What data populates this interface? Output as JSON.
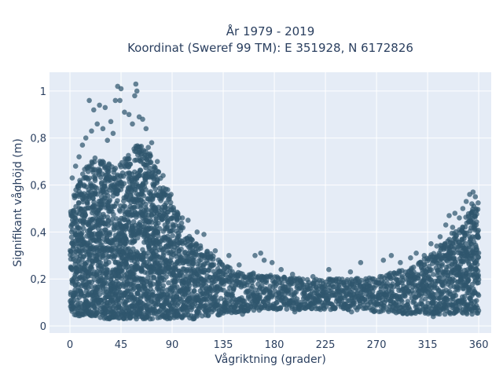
{
  "chart_data": {
    "type": "scatter",
    "title_line1": "År 1979 - 2019",
    "title_line2": "Koordinat (Sweref 99 TM): E 351928, N 6172826",
    "xlabel": "Vågriktning (grader)",
    "ylabel": "Signifikant våghöjd (m)",
    "xlim": [
      -18,
      371
    ],
    "ylim": [
      -0.03,
      1.08
    ],
    "x_ticks": [
      0,
      45,
      90,
      135,
      180,
      225,
      270,
      315,
      360
    ],
    "x_tick_labels": [
      "0",
      "45",
      "90",
      "135",
      "180",
      "225",
      "270",
      "315",
      "360"
    ],
    "y_ticks": [
      0,
      0.2,
      0.4,
      0.6,
      0.8,
      1
    ],
    "y_tick_labels": [
      "0",
      "0,2",
      "0,4",
      "0,6",
      "0,8",
      "1"
    ],
    "marker_color": "#2f566e",
    "grid": true,
    "plot_background": "#e5ecf6",
    "envelope": {
      "x": [
        0,
        10,
        20,
        30,
        40,
        50,
        60,
        70,
        80,
        90,
        100,
        110,
        120,
        135,
        150,
        180,
        210,
        240,
        270,
        300,
        320,
        330,
        340,
        350,
        360
      ],
      "y_upper": [
        0.52,
        0.65,
        0.72,
        0.7,
        0.68,
        0.72,
        0.78,
        0.74,
        0.62,
        0.52,
        0.42,
        0.36,
        0.32,
        0.26,
        0.23,
        0.22,
        0.2,
        0.2,
        0.21,
        0.25,
        0.32,
        0.37,
        0.42,
        0.48,
        0.54
      ],
      "y_lower": [
        0.05,
        0.04,
        0.04,
        0.03,
        0.03,
        0.03,
        0.03,
        0.03,
        0.03,
        0.03,
        0.03,
        0.03,
        0.04,
        0.05,
        0.06,
        0.07,
        0.07,
        0.07,
        0.06,
        0.05,
        0.05,
        0.05,
        0.05,
        0.05,
        0.05
      ]
    },
    "outliers": [
      {
        "x": 58,
        "y": 1.03
      },
      {
        "x": 42,
        "y": 1.02
      },
      {
        "x": 45,
        "y": 1.01
      },
      {
        "x": 59,
        "y": 1.0
      },
      {
        "x": 57,
        "y": 0.98
      },
      {
        "x": 40,
        "y": 0.96
      },
      {
        "x": 44,
        "y": 0.96
      },
      {
        "x": 17,
        "y": 0.96
      },
      {
        "x": 26,
        "y": 0.94
      },
      {
        "x": 31,
        "y": 0.93
      },
      {
        "x": 21,
        "y": 0.92
      },
      {
        "x": 48,
        "y": 0.91
      },
      {
        "x": 52,
        "y": 0.9
      },
      {
        "x": 61,
        "y": 0.89
      },
      {
        "x": 64,
        "y": 0.88
      },
      {
        "x": 36,
        "y": 0.87
      },
      {
        "x": 24,
        "y": 0.86
      },
      {
        "x": 55,
        "y": 0.86
      },
      {
        "x": 29,
        "y": 0.84
      },
      {
        "x": 67,
        "y": 0.84
      },
      {
        "x": 19,
        "y": 0.83
      },
      {
        "x": 38,
        "y": 0.82
      },
      {
        "x": 14,
        "y": 0.8
      },
      {
        "x": 33,
        "y": 0.79
      },
      {
        "x": 72,
        "y": 0.78
      },
      {
        "x": 11,
        "y": 0.77
      },
      {
        "x": 69,
        "y": 0.76
      },
      {
        "x": 8,
        "y": 0.72
      },
      {
        "x": 5,
        "y": 0.68
      },
      {
        "x": 77,
        "y": 0.7
      },
      {
        "x": 2,
        "y": 0.63
      },
      {
        "x": 82,
        "y": 0.64
      },
      {
        "x": 86,
        "y": 0.58
      },
      {
        "x": 89,
        "y": 0.56
      },
      {
        "x": 95,
        "y": 0.48
      },
      {
        "x": 99,
        "y": 0.46
      },
      {
        "x": 104,
        "y": 0.45
      },
      {
        "x": 112,
        "y": 0.4
      },
      {
        "x": 118,
        "y": 0.39
      },
      {
        "x": 128,
        "y": 0.32
      },
      {
        "x": 140,
        "y": 0.3
      },
      {
        "x": 149,
        "y": 0.26
      },
      {
        "x": 163,
        "y": 0.3
      },
      {
        "x": 168,
        "y": 0.31
      },
      {
        "x": 171,
        "y": 0.28
      },
      {
        "x": 178,
        "y": 0.27
      },
      {
        "x": 186,
        "y": 0.24
      },
      {
        "x": 196,
        "y": 0.22
      },
      {
        "x": 214,
        "y": 0.21
      },
      {
        "x": 228,
        "y": 0.24
      },
      {
        "x": 237,
        "y": 0.2
      },
      {
        "x": 247,
        "y": 0.23
      },
      {
        "x": 256,
        "y": 0.27
      },
      {
        "x": 276,
        "y": 0.28
      },
      {
        "x": 283,
        "y": 0.3
      },
      {
        "x": 291,
        "y": 0.27
      },
      {
        "x": 300,
        "y": 0.29
      },
      {
        "x": 305,
        "y": 0.31
      },
      {
        "x": 312,
        "y": 0.3
      },
      {
        "x": 318,
        "y": 0.35
      },
      {
        "x": 323,
        "y": 0.34
      },
      {
        "x": 326,
        "y": 0.38
      },
      {
        "x": 331,
        "y": 0.43
      },
      {
        "x": 334,
        "y": 0.47
      },
      {
        "x": 337,
        "y": 0.42
      },
      {
        "x": 339,
        "y": 0.48
      },
      {
        "x": 343,
        "y": 0.46
      },
      {
        "x": 346,
        "y": 0.5
      },
      {
        "x": 349,
        "y": 0.53
      },
      {
        "x": 352,
        "y": 0.56
      },
      {
        "x": 355,
        "y": 0.57
      },
      {
        "x": 357,
        "y": 0.55
      },
      {
        "x": 354,
        "y": 0.52
      },
      {
        "x": 358,
        "y": 0.49
      },
      {
        "x": 152,
        "y": 0.05
      },
      {
        "x": 198,
        "y": 0.06
      },
      {
        "x": 248,
        "y": 0.06
      },
      {
        "x": 320,
        "y": 0.04
      }
    ]
  }
}
